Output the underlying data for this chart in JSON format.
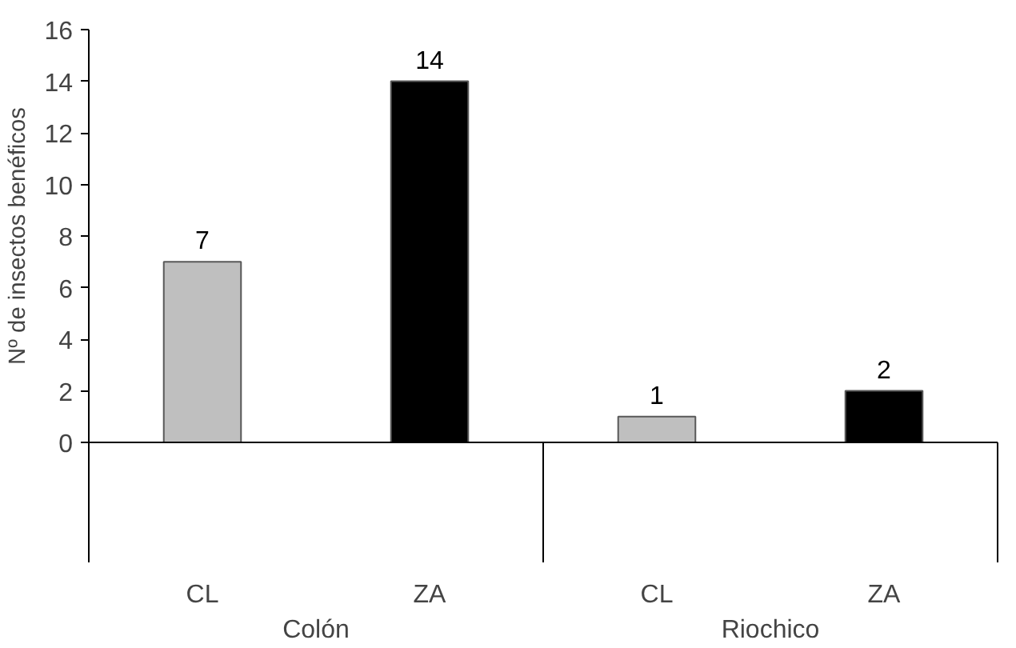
{
  "chart_data": {
    "type": "bar",
    "ylabel": "Nº de insectos benéficos",
    "categories": [
      "CL",
      "ZA",
      "CL",
      "ZA"
    ],
    "values": [
      7,
      14,
      1,
      2
    ],
    "colors": [
      "#bfbfbf",
      "#000000",
      "#bfbfbf",
      "#000000"
    ],
    "ylim": [
      0,
      16
    ],
    "yticks": [
      0,
      2,
      4,
      6,
      8,
      10,
      12,
      14,
      16
    ],
    "data_labels": true,
    "grid": false,
    "annotations": [
      "Colón",
      "Riochico"
    ]
  }
}
